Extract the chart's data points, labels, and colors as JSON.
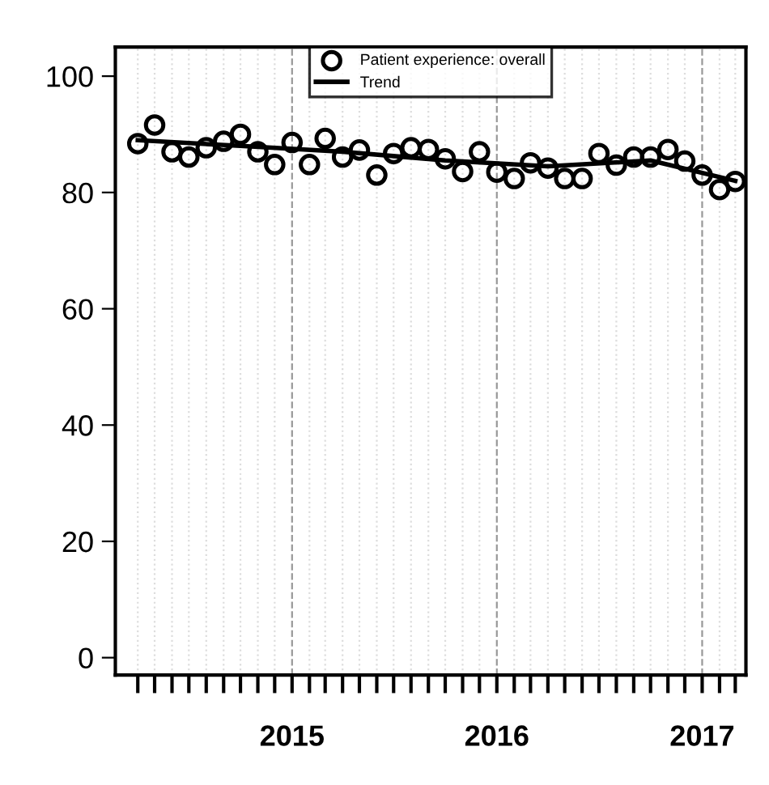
{
  "chart_data": {
    "type": "scatter",
    "series": [
      {
        "name": "Patient experience: overall",
        "color": "#000000",
        "marker": "circle",
        "x": [
          "2014-04",
          "2014-05",
          "2014-06",
          "2014-07",
          "2014-08",
          "2014-09",
          "2014-10",
          "2014-11",
          "2014-12",
          "2015-01",
          "2015-02",
          "2015-03",
          "2015-04",
          "2015-05",
          "2015-06",
          "2015-07",
          "2015-08",
          "2015-09",
          "2015-10",
          "2015-11",
          "2015-12",
          "2016-01",
          "2016-02",
          "2016-03",
          "2016-04",
          "2016-05",
          "2016-06",
          "2016-07",
          "2016-08",
          "2016-09",
          "2016-10",
          "2016-11",
          "2016-12",
          "2017-01",
          "2017-02",
          "2017-03"
        ],
        "values": [
          88.4,
          91.6,
          87.0,
          86.1,
          87.7,
          88.8,
          90.0,
          87.0,
          84.8,
          88.6,
          84.8,
          89.3,
          86.1,
          87.3,
          83.0,
          86.7,
          87.7,
          87.4,
          85.8,
          83.6,
          87.0,
          83.5,
          82.4,
          85.1,
          84.2,
          82.4,
          82.4,
          86.7,
          84.7,
          86.1,
          86.1,
          87.4,
          85.4,
          83.0,
          80.5,
          81.9
        ]
      },
      {
        "name": "Trend",
        "type": "line",
        "color": "#000000",
        "marker": "none",
        "line_style": "solid",
        "x": [
          "2014-04",
          "2014-10",
          "2015-04",
          "2015-10",
          "2016-04",
          "2016-10",
          "2017-03"
        ],
        "values": [
          89.0,
          88.0,
          87.0,
          85.5,
          84.5,
          85.5,
          82.0
        ]
      }
    ],
    "xlim": [
      "2014-02-20",
      "2017-03-20"
    ],
    "xticks": [
      {
        "value": "2014-04",
        "label": null
      },
      {
        "value": "2014-05",
        "label": null
      },
      {
        "value": "2014-06",
        "label": null
      },
      {
        "value": "2014-07",
        "label": null
      },
      {
        "value": "2014-08",
        "label": null
      },
      {
        "value": "2014-09",
        "label": null
      },
      {
        "value": "2014-10",
        "label": null
      },
      {
        "value": "2014-11",
        "label": null
      },
      {
        "value": "2014-12",
        "label": null
      },
      {
        "value": "2015-01",
        "label": "2015"
      },
      {
        "value": "2015-02",
        "label": null
      },
      {
        "value": "2015-03",
        "label": null
      },
      {
        "value": "2015-04",
        "label": null
      },
      {
        "value": "2015-05",
        "label": null
      },
      {
        "value": "2015-06",
        "label": null
      },
      {
        "value": "2015-07",
        "label": null
      },
      {
        "value": "2015-08",
        "label": null
      },
      {
        "value": "2015-09",
        "label": null
      },
      {
        "value": "2015-10",
        "label": null
      },
      {
        "value": "2015-11",
        "label": null
      },
      {
        "value": "2015-12",
        "label": null
      },
      {
        "value": "2016-01",
        "label": "2016"
      },
      {
        "value": "2016-02",
        "label": null
      },
      {
        "value": "2016-03",
        "label": null
      },
      {
        "value": "2016-04",
        "label": null
      },
      {
        "value": "2016-05",
        "label": null
      },
      {
        "value": "2016-06",
        "label": null
      },
      {
        "value": "2016-07",
        "label": null
      },
      {
        "value": "2016-08",
        "label": null
      },
      {
        "value": "2016-09",
        "label": null
      },
      {
        "value": "2016-10",
        "label": null
      },
      {
        "value": "2016-11",
        "label": null
      },
      {
        "value": "2016-12",
        "label": null
      },
      {
        "value": "2017-01",
        "label": "2017"
      },
      {
        "value": "2017-02",
        "label": null
      },
      {
        "value": "2017-03",
        "label": null
      }
    ],
    "ylim": [
      -3,
      105
    ],
    "yticks": [
      0,
      20,
      40,
      60,
      80,
      100
    ],
    "grid": "x",
    "legend": "top"
  }
}
